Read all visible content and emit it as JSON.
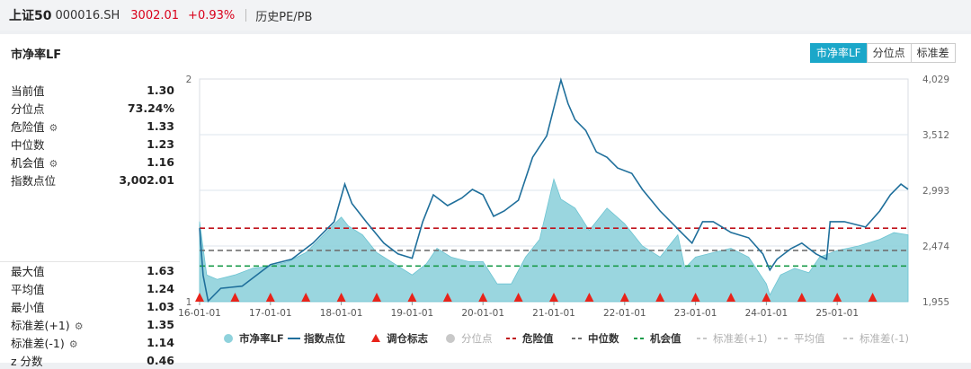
{
  "header": {
    "name": "上证50",
    "code": "000016.SH",
    "price": "3002.01",
    "change": "+0.93%",
    "section": "历史PE/PB"
  },
  "panel": {
    "title": "市净率LF"
  },
  "tabs": [
    {
      "label": "市净率LF",
      "active": true
    },
    {
      "label": "分位点",
      "active": false
    },
    {
      "label": "标准差",
      "active": false
    }
  ],
  "stats_top": [
    {
      "label": "当前值",
      "value": "1.30",
      "gear": false
    },
    {
      "label": "分位点",
      "value": "73.24%",
      "gear": false
    },
    {
      "label": "危险值",
      "value": "1.33",
      "gear": true
    },
    {
      "label": "中位数",
      "value": "1.23",
      "gear": false
    },
    {
      "label": "机会值",
      "value": "1.16",
      "gear": true
    },
    {
      "label": "指数点位",
      "value": "3,002.01",
      "gear": false
    }
  ],
  "stats_bottom": [
    {
      "label": "最大值",
      "value": "1.63",
      "gear": false
    },
    {
      "label": "平均值",
      "value": "1.24",
      "gear": false
    },
    {
      "label": "最小值",
      "value": "1.03",
      "gear": false
    },
    {
      "label": "标准差(+1)",
      "value": "1.35",
      "gear": true
    },
    {
      "label": "标准差(-1)",
      "value": "1.14",
      "gear": true
    },
    {
      "label": "z 分数",
      "value": "0.46",
      "gear": false
    }
  ],
  "chart_data": {
    "type": "area",
    "x_tick_labels": [
      "16-01-01",
      "17-01-01",
      "18-01-01",
      "19-01-01",
      "20-01-01",
      "21-01-01",
      "22-01-01",
      "23-01-01",
      "24-01-01",
      "25-01-01"
    ],
    "x_range": [
      2016.0,
      2026.0
    ],
    "y_left": {
      "ticks": [
        1,
        2
      ],
      "range": [
        1.0,
        2.0
      ]
    },
    "y_right": {
      "ticks": [
        "1,955",
        "2,474",
        "2,993",
        "3,512",
        "4,029"
      ],
      "range": [
        1955,
        4029
      ]
    },
    "reference_lines": [
      {
        "name": "危险值",
        "value": 1.33,
        "color": "#c0121b"
      },
      {
        "name": "中位数",
        "value": 1.23,
        "color": "#707070"
      },
      {
        "name": "机会值",
        "value": 1.16,
        "color": "#1a9b4a"
      }
    ],
    "series": [
      {
        "name": "市净率LF",
        "kind": "area",
        "axis": "left",
        "color": "#8fd2dc",
        "points": [
          [
            2016.0,
            1.36
          ],
          [
            2016.1,
            1.12
          ],
          [
            2016.25,
            1.1
          ],
          [
            2016.5,
            1.12
          ],
          [
            2016.75,
            1.15
          ],
          [
            2017.0,
            1.16
          ],
          [
            2017.25,
            1.18
          ],
          [
            2017.5,
            1.22
          ],
          [
            2017.75,
            1.3
          ],
          [
            2018.0,
            1.38
          ],
          [
            2018.1,
            1.34
          ],
          [
            2018.3,
            1.3
          ],
          [
            2018.5,
            1.22
          ],
          [
            2018.75,
            1.17
          ],
          [
            2019.0,
            1.12
          ],
          [
            2019.2,
            1.17
          ],
          [
            2019.35,
            1.24
          ],
          [
            2019.55,
            1.2
          ],
          [
            2019.8,
            1.18
          ],
          [
            2020.0,
            1.18
          ],
          [
            2020.2,
            1.08
          ],
          [
            2020.4,
            1.08
          ],
          [
            2020.6,
            1.2
          ],
          [
            2020.8,
            1.28
          ],
          [
            2021.0,
            1.55
          ],
          [
            2021.1,
            1.46
          ],
          [
            2021.3,
            1.42
          ],
          [
            2021.5,
            1.32
          ],
          [
            2021.75,
            1.42
          ],
          [
            2022.0,
            1.35
          ],
          [
            2022.25,
            1.25
          ],
          [
            2022.5,
            1.2
          ],
          [
            2022.75,
            1.3
          ],
          [
            2022.85,
            1.15
          ],
          [
            2023.0,
            1.2
          ],
          [
            2023.25,
            1.22
          ],
          [
            2023.5,
            1.24
          ],
          [
            2023.75,
            1.2
          ],
          [
            2024.0,
            1.08
          ],
          [
            2024.05,
            1.03
          ],
          [
            2024.2,
            1.12
          ],
          [
            2024.4,
            1.15
          ],
          [
            2024.6,
            1.13
          ],
          [
            2024.75,
            1.2
          ],
          [
            2025.0,
            1.23
          ],
          [
            2025.3,
            1.25
          ],
          [
            2025.6,
            1.28
          ],
          [
            2025.8,
            1.31
          ],
          [
            2026.0,
            1.3
          ]
        ]
      },
      {
        "name": "指数点位",
        "kind": "line",
        "axis": "right",
        "color": "#1f6f9b",
        "points": [
          [
            2016.0,
            2640
          ],
          [
            2016.05,
            2200
          ],
          [
            2016.12,
            1960
          ],
          [
            2016.3,
            2080
          ],
          [
            2016.6,
            2100
          ],
          [
            2016.9,
            2250
          ],
          [
            2017.0,
            2300
          ],
          [
            2017.3,
            2350
          ],
          [
            2017.6,
            2500
          ],
          [
            2017.9,
            2700
          ],
          [
            2018.05,
            3050
          ],
          [
            2018.15,
            2870
          ],
          [
            2018.35,
            2700
          ],
          [
            2018.6,
            2500
          ],
          [
            2018.8,
            2400
          ],
          [
            2019.0,
            2360
          ],
          [
            2019.15,
            2700
          ],
          [
            2019.3,
            2950
          ],
          [
            2019.5,
            2850
          ],
          [
            2019.7,
            2920
          ],
          [
            2019.85,
            3000
          ],
          [
            2020.0,
            2950
          ],
          [
            2020.15,
            2750
          ],
          [
            2020.3,
            2800
          ],
          [
            2020.5,
            2900
          ],
          [
            2020.7,
            3300
          ],
          [
            2020.9,
            3500
          ],
          [
            2021.1,
            4020
          ],
          [
            2021.2,
            3800
          ],
          [
            2021.3,
            3650
          ],
          [
            2021.45,
            3550
          ],
          [
            2021.6,
            3350
          ],
          [
            2021.75,
            3300
          ],
          [
            2021.9,
            3200
          ],
          [
            2022.1,
            3150
          ],
          [
            2022.25,
            3000
          ],
          [
            2022.5,
            2800
          ],
          [
            2022.8,
            2600
          ],
          [
            2022.95,
            2500
          ],
          [
            2023.1,
            2700
          ],
          [
            2023.25,
            2700
          ],
          [
            2023.5,
            2600
          ],
          [
            2023.75,
            2550
          ],
          [
            2023.95,
            2400
          ],
          [
            2024.05,
            2250
          ],
          [
            2024.15,
            2350
          ],
          [
            2024.35,
            2450
          ],
          [
            2024.5,
            2500
          ],
          [
            2024.7,
            2400
          ],
          [
            2024.85,
            2350
          ],
          [
            2024.9,
            2700
          ],
          [
            2025.1,
            2700
          ],
          [
            2025.4,
            2650
          ],
          [
            2025.6,
            2800
          ],
          [
            2025.75,
            2950
          ],
          [
            2025.9,
            3050
          ],
          [
            2026.0,
            3002
          ]
        ]
      }
    ],
    "markers": {
      "name": "调仓标志",
      "color": "#e8231a",
      "x": [
        2016.0,
        2016.5,
        2017.0,
        2017.5,
        2018.0,
        2018.5,
        2019.0,
        2019.5,
        2020.0,
        2020.5,
        2021.0,
        2021.5,
        2022.0,
        2022.5,
        2023.0,
        2023.5,
        2024.0,
        2024.5,
        2025.0,
        2025.5
      ]
    },
    "legend": [
      {
        "label": "市净率LF",
        "kind": "dot",
        "color": "#8fd2dc",
        "enabled": true
      },
      {
        "label": "指数点位",
        "kind": "line",
        "color": "#1f6f9b",
        "enabled": true
      },
      {
        "label": "调仓标志",
        "kind": "triangle",
        "color": "#e8231a",
        "enabled": true
      },
      {
        "label": "分位点",
        "kind": "dot",
        "color": "#c8c8c8",
        "enabled": false
      },
      {
        "label": "危险值",
        "kind": "dash",
        "color": "#c0121b",
        "enabled": true
      },
      {
        "label": "中位数",
        "kind": "dash",
        "color": "#707070",
        "enabled": true
      },
      {
        "label": "机会值",
        "kind": "dash",
        "color": "#1a9b4a",
        "enabled": true
      },
      {
        "label": "标准差(+1)",
        "kind": "dash",
        "color": "#c8c8c8",
        "enabled": false
      },
      {
        "label": "平均值",
        "kind": "dash",
        "color": "#c8c8c8",
        "enabled": false
      },
      {
        "label": "标准差(-1)",
        "kind": "dash",
        "color": "#c8c8c8",
        "enabled": false
      }
    ],
    "legend_position": "bottom"
  }
}
